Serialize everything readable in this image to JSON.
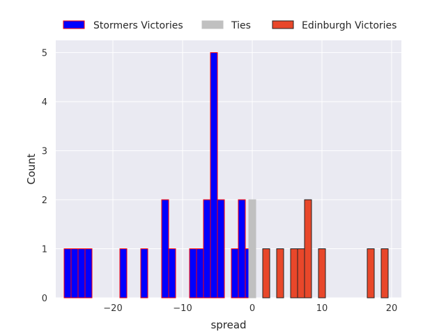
{
  "chart_data": {
    "type": "bar",
    "title": "",
    "xlabel": "spread",
    "ylabel": "Count",
    "xlim": [
      -28.2,
      21.4
    ],
    "ylim": [
      0,
      5.25
    ],
    "xticks": [
      -20,
      -10,
      0,
      10,
      20
    ],
    "yticks": [
      0,
      1,
      2,
      3,
      4,
      5
    ],
    "bin_width": 1,
    "grid": true,
    "legend_position": "top, outside plot, horizontal",
    "series": [
      {
        "name": "Stormers Victories",
        "color": "#0000ff",
        "edgecolor": "#ff0000",
        "bins": [
          {
            "x": -27,
            "count": 1
          },
          {
            "x": -26,
            "count": 1
          },
          {
            "x": -25,
            "count": 1
          },
          {
            "x": -24,
            "count": 1
          },
          {
            "x": -19,
            "count": 1
          },
          {
            "x": -16,
            "count": 1
          },
          {
            "x": -13,
            "count": 2
          },
          {
            "x": -12,
            "count": 1
          },
          {
            "x": -9,
            "count": 1
          },
          {
            "x": -8,
            "count": 1
          },
          {
            "x": -7,
            "count": 2
          },
          {
            "x": -6,
            "count": 5
          },
          {
            "x": -5,
            "count": 2
          },
          {
            "x": -3,
            "count": 1
          },
          {
            "x": -2,
            "count": 2
          },
          {
            "x": -1,
            "count": 1
          }
        ]
      },
      {
        "name": "Ties",
        "color": "#c0c0c0",
        "edgecolor": "#c0c0c0",
        "bins": [
          {
            "x": -0.5,
            "count": 2
          }
        ]
      },
      {
        "name": "Edinburgh Victories",
        "color": "#e8472a",
        "edgecolor": "#222222",
        "bins": [
          {
            "x": 1.5,
            "count": 1
          },
          {
            "x": 3.5,
            "count": 1
          },
          {
            "x": 5.5,
            "count": 1
          },
          {
            "x": 6.5,
            "count": 1
          },
          {
            "x": 7.5,
            "count": 2
          },
          {
            "x": 9.5,
            "count": 1
          },
          {
            "x": 16.5,
            "count": 1
          },
          {
            "x": 18.5,
            "count": 1
          }
        ]
      }
    ]
  }
}
